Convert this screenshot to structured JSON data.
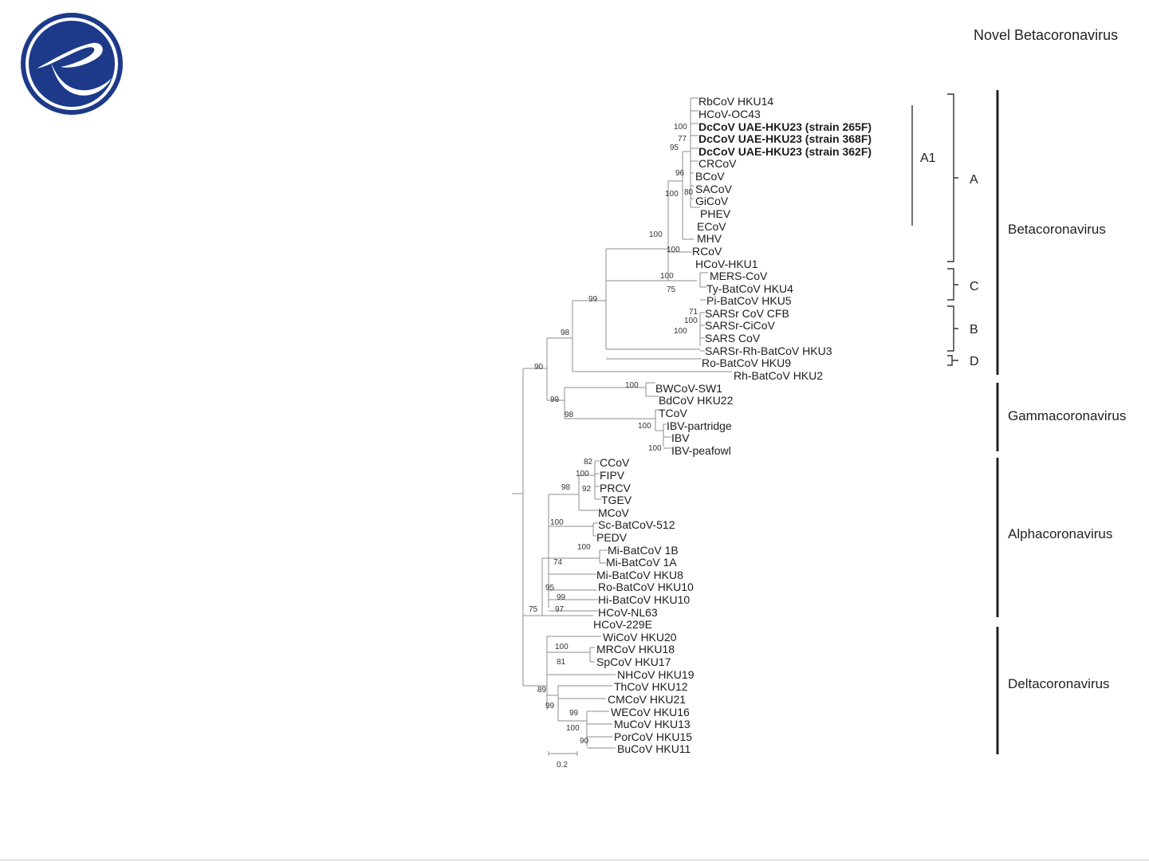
{
  "header": {
    "title": "Novel Betacoronavirus"
  },
  "logo": {
    "name": "publisher-logo",
    "color": "#1d3a8a"
  },
  "tree": {
    "tips": [
      {
        "label": "RbCoV HKU14",
        "bold": false
      },
      {
        "label": "HCoV-OC43",
        "bold": false
      },
      {
        "label": "DcCoV UAE-HKU23 (strain 265F)",
        "bold": true
      },
      {
        "label": "DcCoV UAE-HKU23 (strain 368F)",
        "bold": true
      },
      {
        "label": "DcCoV UAE-HKU23 (strain 362F)",
        "bold": true
      },
      {
        "label": "CRCoV",
        "bold": false
      },
      {
        "label": "BCoV",
        "bold": false
      },
      {
        "label": "SACoV",
        "bold": false
      },
      {
        "label": "GiCoV",
        "bold": false
      },
      {
        "label": "PHEV",
        "bold": false
      },
      {
        "label": "ECoV",
        "bold": false
      },
      {
        "label": "MHV",
        "bold": false
      },
      {
        "label": "RCoV",
        "bold": false
      },
      {
        "label": "HCoV-HKU1",
        "bold": false
      },
      {
        "label": "MERS-CoV",
        "bold": false
      },
      {
        "label": "Ty-BatCoV HKU4",
        "bold": false
      },
      {
        "label": "Pi-BatCoV HKU5",
        "bold": false
      },
      {
        "label": "SARSr CoV CFB",
        "bold": false
      },
      {
        "label": "SARSr-CiCoV",
        "bold": false
      },
      {
        "label": "SARS CoV",
        "bold": false
      },
      {
        "label": "SARSr-Rh-BatCoV HKU3",
        "bold": false
      },
      {
        "label": "Ro-BatCoV HKU9",
        "bold": false
      },
      {
        "label": "Rh-BatCoV HKU2",
        "bold": false
      },
      {
        "label": "BWCoV-SW1",
        "bold": false
      },
      {
        "label": "BdCoV HKU22",
        "bold": false
      },
      {
        "label": "TCoV",
        "bold": false
      },
      {
        "label": "IBV-partridge",
        "bold": false
      },
      {
        "label": "IBV",
        "bold": false
      },
      {
        "label": "IBV-peafowl",
        "bold": false
      },
      {
        "label": "CCoV",
        "bold": false
      },
      {
        "label": "FIPV",
        "bold": false
      },
      {
        "label": "PRCV",
        "bold": false
      },
      {
        "label": "TGEV",
        "bold": false
      },
      {
        "label": "MCoV",
        "bold": false
      },
      {
        "label": "Sc-BatCoV-512",
        "bold": false
      },
      {
        "label": "PEDV",
        "bold": false
      },
      {
        "label": "Mi-BatCoV 1B",
        "bold": false
      },
      {
        "label": "Mi-BatCoV 1A",
        "bold": false
      },
      {
        "label": "Mi-BatCoV HKU8",
        "bold": false
      },
      {
        "label": "Ro-BatCoV HKU10",
        "bold": false
      },
      {
        "label": "Hi-BatCoV HKU10",
        "bold": false
      },
      {
        "label": "HCoV-NL63",
        "bold": false
      },
      {
        "label": "HCoV-229E",
        "bold": false
      },
      {
        "label": "WiCoV HKU20",
        "bold": false
      },
      {
        "label": "MRCoV HKU18",
        "bold": false
      },
      {
        "label": "SpCoV HKU17",
        "bold": false
      },
      {
        "label": "NHCoV HKU19",
        "bold": false
      },
      {
        "label": "ThCoV HKU12",
        "bold": false
      },
      {
        "label": "CMCoV HKU21",
        "bold": false
      },
      {
        "label": "WECoV HKU16",
        "bold": false
      },
      {
        "label": "MuCoV HKU13",
        "bold": false
      },
      {
        "label": "PorCoV HKU15",
        "bold": false
      },
      {
        "label": "BuCoV HKU11",
        "bold": false
      }
    ],
    "support_values": [
      "100",
      "77",
      "95",
      "96",
      "100",
      "80",
      "100",
      "100",
      "100",
      "75",
      "99",
      "71",
      "100",
      "100",
      "98",
      "90",
      "100",
      "99",
      "98",
      "100",
      "100",
      "82",
      "100",
      "98",
      "92",
      "100",
      "100",
      "74",
      "95",
      "99",
      "97",
      "75",
      "100",
      "81",
      "89",
      "99",
      "99",
      "100",
      "90"
    ],
    "subgroups": [
      "A1",
      "A",
      "C",
      "B",
      "D"
    ],
    "genera": [
      "Betacoronavirus",
      "Gammacoronavirus",
      "Alphacoronavirus",
      "Deltacoronavirus"
    ],
    "scale_bar": "0.2"
  }
}
